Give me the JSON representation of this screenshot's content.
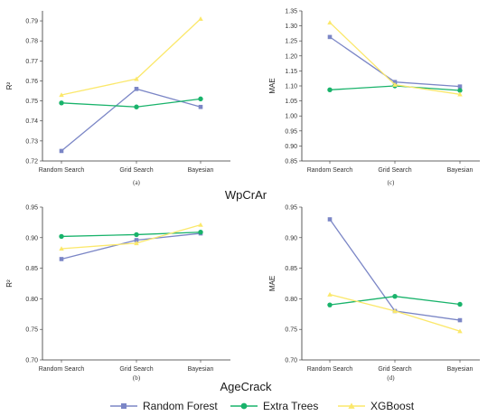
{
  "group_labels": [
    "WpCrAr",
    "AgeCrack"
  ],
  "series_styles": [
    {
      "name": "Random Forest",
      "color": "#7b86c6",
      "marker": "square"
    },
    {
      "name": "Extra Trees",
      "color": "#19b36b",
      "marker": "circle"
    },
    {
      "name": "XGBoost",
      "color": "#fbe86b",
      "marker": "triangle"
    }
  ],
  "chart_data": [
    {
      "type": "line",
      "panel_label": "(a)",
      "categories": [
        "Random Search",
        "Grid Search",
        "Bayesian"
      ],
      "ylabel": "R²",
      "ylim": [
        0.72,
        0.795
      ],
      "yticks": [
        "0.72",
        "0.73",
        "0.74",
        "0.75",
        "0.76",
        "0.77",
        "0.78",
        "0.79"
      ],
      "series": [
        {
          "name": "Random Forest",
          "values": [
            0.725,
            0.756,
            0.747
          ]
        },
        {
          "name": "Extra Trees",
          "values": [
            0.749,
            0.747,
            0.751
          ]
        },
        {
          "name": "XGBoost",
          "values": [
            0.753,
            0.761,
            0.791
          ]
        }
      ]
    },
    {
      "type": "line",
      "panel_label": "(c)",
      "categories": [
        "Random Search",
        "Grid Search",
        "Bayesian"
      ],
      "ylabel": "MAE",
      "ylim": [
        0.85,
        1.35
      ],
      "yticks": [
        "0.85",
        "0.90",
        "0.95",
        "1.00",
        "1.05",
        "1.10",
        "1.15",
        "1.20",
        "1.25",
        "1.30",
        "1.35"
      ],
      "series": [
        {
          "name": "Random Forest",
          "values": [
            1.263,
            1.113,
            1.098
          ]
        },
        {
          "name": "Extra Trees",
          "values": [
            1.087,
            1.1,
            1.085
          ]
        },
        {
          "name": "XGBoost",
          "values": [
            1.311,
            1.104,
            1.072
          ]
        }
      ]
    },
    {
      "type": "line",
      "panel_label": "(b)",
      "categories": [
        "Random Search",
        "Grid Search",
        "Bayesian"
      ],
      "ylabel": "R²",
      "ylim": [
        0.7,
        0.95
      ],
      "yticks": [
        "0.70",
        "0.75",
        "0.80",
        "0.85",
        "0.90",
        "0.95"
      ],
      "series": [
        {
          "name": "Random Forest",
          "values": [
            0.865,
            0.896,
            0.907
          ]
        },
        {
          "name": "Extra Trees",
          "values": [
            0.902,
            0.905,
            0.909
          ]
        },
        {
          "name": "XGBoost",
          "values": [
            0.882,
            0.891,
            0.921
          ]
        }
      ]
    },
    {
      "type": "line",
      "panel_label": "(d)",
      "categories": [
        "Random Search",
        "Grid Search",
        "Bayesian"
      ],
      "ylabel": "MAE",
      "ylim": [
        0.7,
        0.95
      ],
      "yticks": [
        "0.70",
        "0.75",
        "0.80",
        "0.85",
        "0.90",
        "0.95"
      ],
      "series": [
        {
          "name": "Random Forest",
          "values": [
            0.93,
            0.78,
            0.765
          ]
        },
        {
          "name": "Extra Trees",
          "values": [
            0.79,
            0.804,
            0.791
          ]
        },
        {
          "name": "XGBoost",
          "values": [
            0.807,
            0.78,
            0.747
          ]
        }
      ]
    }
  ]
}
